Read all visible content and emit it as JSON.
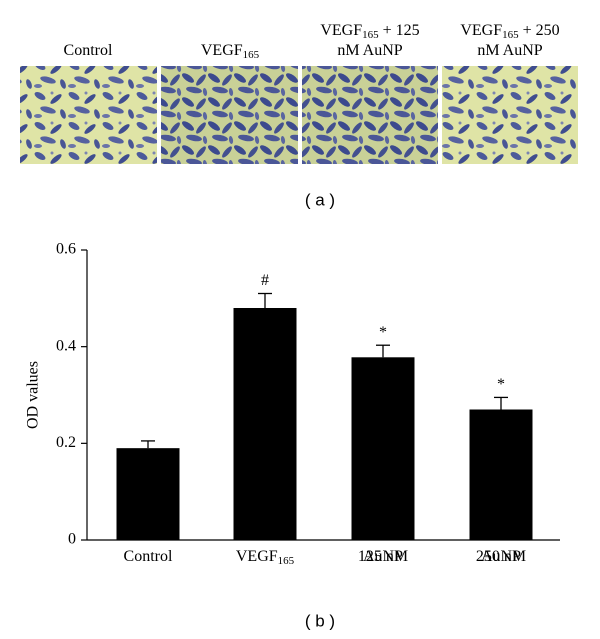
{
  "panel_a": {
    "labels": [
      [
        [
          {
            "t": "Control"
          }
        ]
      ],
      [
        [
          {
            "t": "VEGF"
          },
          {
            "t": "165",
            "sub": true
          }
        ]
      ],
      [
        [
          {
            "t": "VEGF"
          },
          {
            "t": "165",
            "sub": true
          },
          {
            "t": " + 125"
          }
        ],
        [
          {
            "t": "nM AuNP"
          }
        ]
      ],
      [
        [
          {
            "t": "VEGF"
          },
          {
            "t": "165",
            "sub": true
          },
          {
            "t": " + 250"
          }
        ],
        [
          {
            "t": "nM AuNP"
          }
        ]
      ]
    ],
    "caption": "( a )"
  },
  "chart_data": {
    "type": "bar",
    "ylabel": "OD values",
    "categories": [
      [
        [
          {
            "t": "Control"
          }
        ]
      ],
      [
        [
          {
            "t": "VEGF"
          },
          {
            "t": "165",
            "sub": true
          }
        ]
      ],
      [
        [
          {
            "t": "125 nM"
          }
        ],
        [
          {
            "t": "AuNP"
          }
        ]
      ],
      [
        [
          {
            "t": "250 nM"
          }
        ],
        [
          {
            "t": "AuNP"
          }
        ]
      ]
    ],
    "values": [
      0.19,
      0.48,
      0.378,
      0.27
    ],
    "errors": [
      0.015,
      0.03,
      0.025,
      0.025
    ],
    "annotations": [
      null,
      "#",
      "*",
      "*"
    ],
    "color": "#000000",
    "ylim": [
      0,
      0.6
    ],
    "yticks": [
      0,
      0.2,
      0.4,
      0.6
    ],
    "caption": "( b )"
  }
}
